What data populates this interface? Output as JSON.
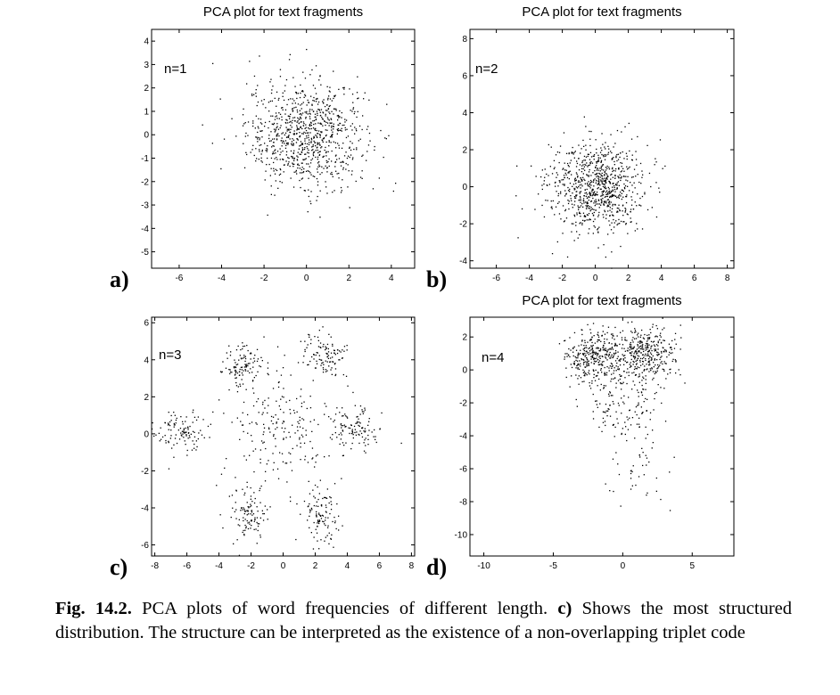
{
  "chart_data": [
    {
      "type": "scatter",
      "panel": "a)",
      "title": "PCA plot for text fragments",
      "annotation": "n=1",
      "xlim": [
        -7.3,
        5.1
      ],
      "ylim": [
        -5.7,
        4.5
      ],
      "xticks": [
        -6,
        -4,
        -2,
        0,
        2,
        4
      ],
      "yticks": [
        -5,
        -4,
        -3,
        -2,
        -1,
        0,
        1,
        2,
        3,
        4
      ],
      "clusters": [
        {
          "center": [
            0.0,
            0.0
          ],
          "spread": [
            1.4,
            1.15
          ],
          "count": 900
        }
      ]
    },
    {
      "type": "scatter",
      "panel": "b)",
      "title": "PCA plot for text fragments",
      "annotation": "n=2",
      "xlim": [
        -7.6,
        8.4
      ],
      "ylim": [
        -4.4,
        8.5
      ],
      "xticks": [
        -6,
        -4,
        -2,
        0,
        2,
        4,
        6,
        8
      ],
      "yticks": [
        -4,
        -2,
        0,
        2,
        4,
        6,
        8
      ],
      "clusters": [
        {
          "center": [
            0.0,
            0.0
          ],
          "spread": [
            1.45,
            1.2
          ],
          "count": 850
        }
      ]
    },
    {
      "type": "scatter",
      "panel": "c)",
      "title": "",
      "annotation": "n=3",
      "xlim": [
        -8.2,
        8.2
      ],
      "ylim": [
        -6.6,
        6.3
      ],
      "xticks": [
        -8,
        -6,
        -4,
        -2,
        0,
        2,
        4,
        6,
        8
      ],
      "yticks": [
        -6,
        -4,
        -2,
        0,
        2,
        4,
        6
      ],
      "clusters": [
        {
          "center": [
            -2.5,
            3.7
          ],
          "spread": [
            0.7,
            0.6
          ],
          "count": 110
        },
        {
          "center": [
            2.6,
            4.2
          ],
          "spread": [
            0.7,
            0.6
          ],
          "count": 110
        },
        {
          "center": [
            -6.3,
            0.1
          ],
          "spread": [
            0.8,
            0.6
          ],
          "count": 110
        },
        {
          "center": [
            4.4,
            0.3
          ],
          "spread": [
            0.8,
            0.6
          ],
          "count": 110
        },
        {
          "center": [
            -2.2,
            -4.4
          ],
          "spread": [
            0.6,
            0.8
          ],
          "count": 110
        },
        {
          "center": [
            2.2,
            -4.3
          ],
          "spread": [
            0.6,
            0.8
          ],
          "count": 110
        },
        {
          "center": [
            0.0,
            0.2
          ],
          "spread": [
            1.8,
            1.7
          ],
          "count": 200
        }
      ]
    },
    {
      "type": "scatter",
      "panel": "d)",
      "title": "PCA plot for text fragments",
      "annotation": "n=4",
      "xlim": [
        -11.0,
        8.0
      ],
      "ylim": [
        -11.3,
        3.2
      ],
      "xticks": [
        -10,
        -5,
        0,
        5
      ],
      "yticks": [
        -10,
        -8,
        -6,
        -4,
        -2,
        0,
        2
      ],
      "clusters": [
        {
          "center": [
            -2.0,
            0.8
          ],
          "spread": [
            1.1,
            0.8
          ],
          "count": 330
        },
        {
          "center": [
            1.6,
            1.0
          ],
          "spread": [
            1.1,
            0.8
          ],
          "count": 330
        },
        {
          "center": [
            0.0,
            -1.8
          ],
          "spread": [
            1.6,
            1.5
          ],
          "count": 180
        },
        {
          "center": [
            0.8,
            -5.8
          ],
          "spread": [
            1.2,
            1.3
          ],
          "count": 40
        }
      ]
    }
  ],
  "colors": {
    "points": "#000000",
    "axes": "#000000",
    "background": "#ffffff"
  },
  "caption": {
    "label": "Fig. 14.2.",
    "text_before": " PCA plots of word frequencies of different length. ",
    "emphasis": "c)",
    "text_after": " Shows the most structured distribution. The structure can be interpreted as the existence of a non-overlapping triplet code"
  }
}
